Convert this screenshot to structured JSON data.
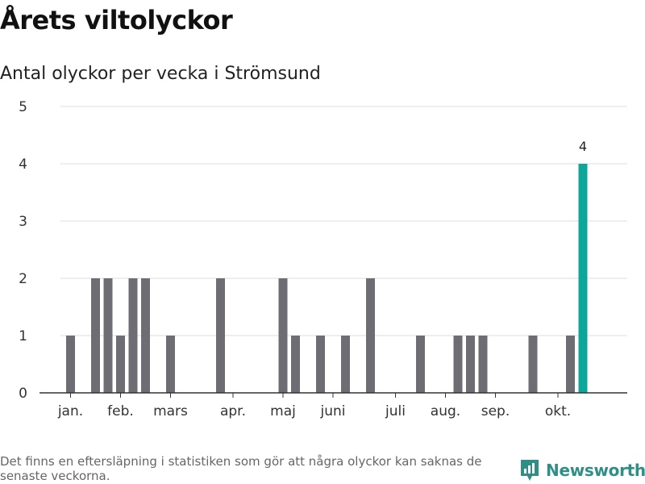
{
  "header": {
    "title": "Årets viltolyckor",
    "subtitle": "Antal olyckor per vecka i Strömsund"
  },
  "footer": {
    "note": "Det finns en eftersläpning i statistiken som gör att några olyckor kan saknas de senaste veckorna.",
    "brand": "Newsworthy",
    "brand_icon": "newsworthy-logo-icon"
  },
  "colors": {
    "bar": "#6e6d73",
    "highlight": "#0ea59a",
    "grid": "#dddddd",
    "axis": "#333333",
    "brand": "#2f8f86"
  },
  "chart_data": {
    "type": "bar",
    "title": "Antal olyckor per vecka i Strömsund",
    "xlabel": "",
    "ylabel": "",
    "ylim": [
      0,
      5
    ],
    "yticks": [
      0,
      1,
      2,
      3,
      4,
      5
    ],
    "grid": true,
    "legend": "none",
    "x_axis_months": [
      "jan.",
      "feb.",
      "mars",
      "apr.",
      "maj",
      "juni",
      "juli",
      "aug.",
      "sep.",
      "okt."
    ],
    "weeks": [
      1,
      2,
      3,
      4,
      5,
      6,
      7,
      8,
      9,
      10,
      11,
      12,
      13,
      14,
      15,
      16,
      17,
      18,
      19,
      20,
      21,
      22,
      23,
      24,
      25,
      26,
      27,
      28,
      29,
      30,
      31,
      32,
      33,
      34,
      35,
      36,
      37,
      38,
      39,
      40,
      41,
      42,
      43
    ],
    "values": [
      0,
      1,
      0,
      2,
      2,
      1,
      2,
      2,
      0,
      1,
      0,
      0,
      0,
      2,
      0,
      0,
      0,
      0,
      2,
      1,
      0,
      1,
      0,
      1,
      0,
      2,
      0,
      0,
      0,
      1,
      0,
      0,
      1,
      1,
      1,
      0,
      0,
      0,
      1,
      0,
      0,
      1,
      4
    ],
    "highlight_index": 42,
    "data_labels": [
      {
        "week": 43,
        "value": 4,
        "text": "4"
      }
    ]
  }
}
